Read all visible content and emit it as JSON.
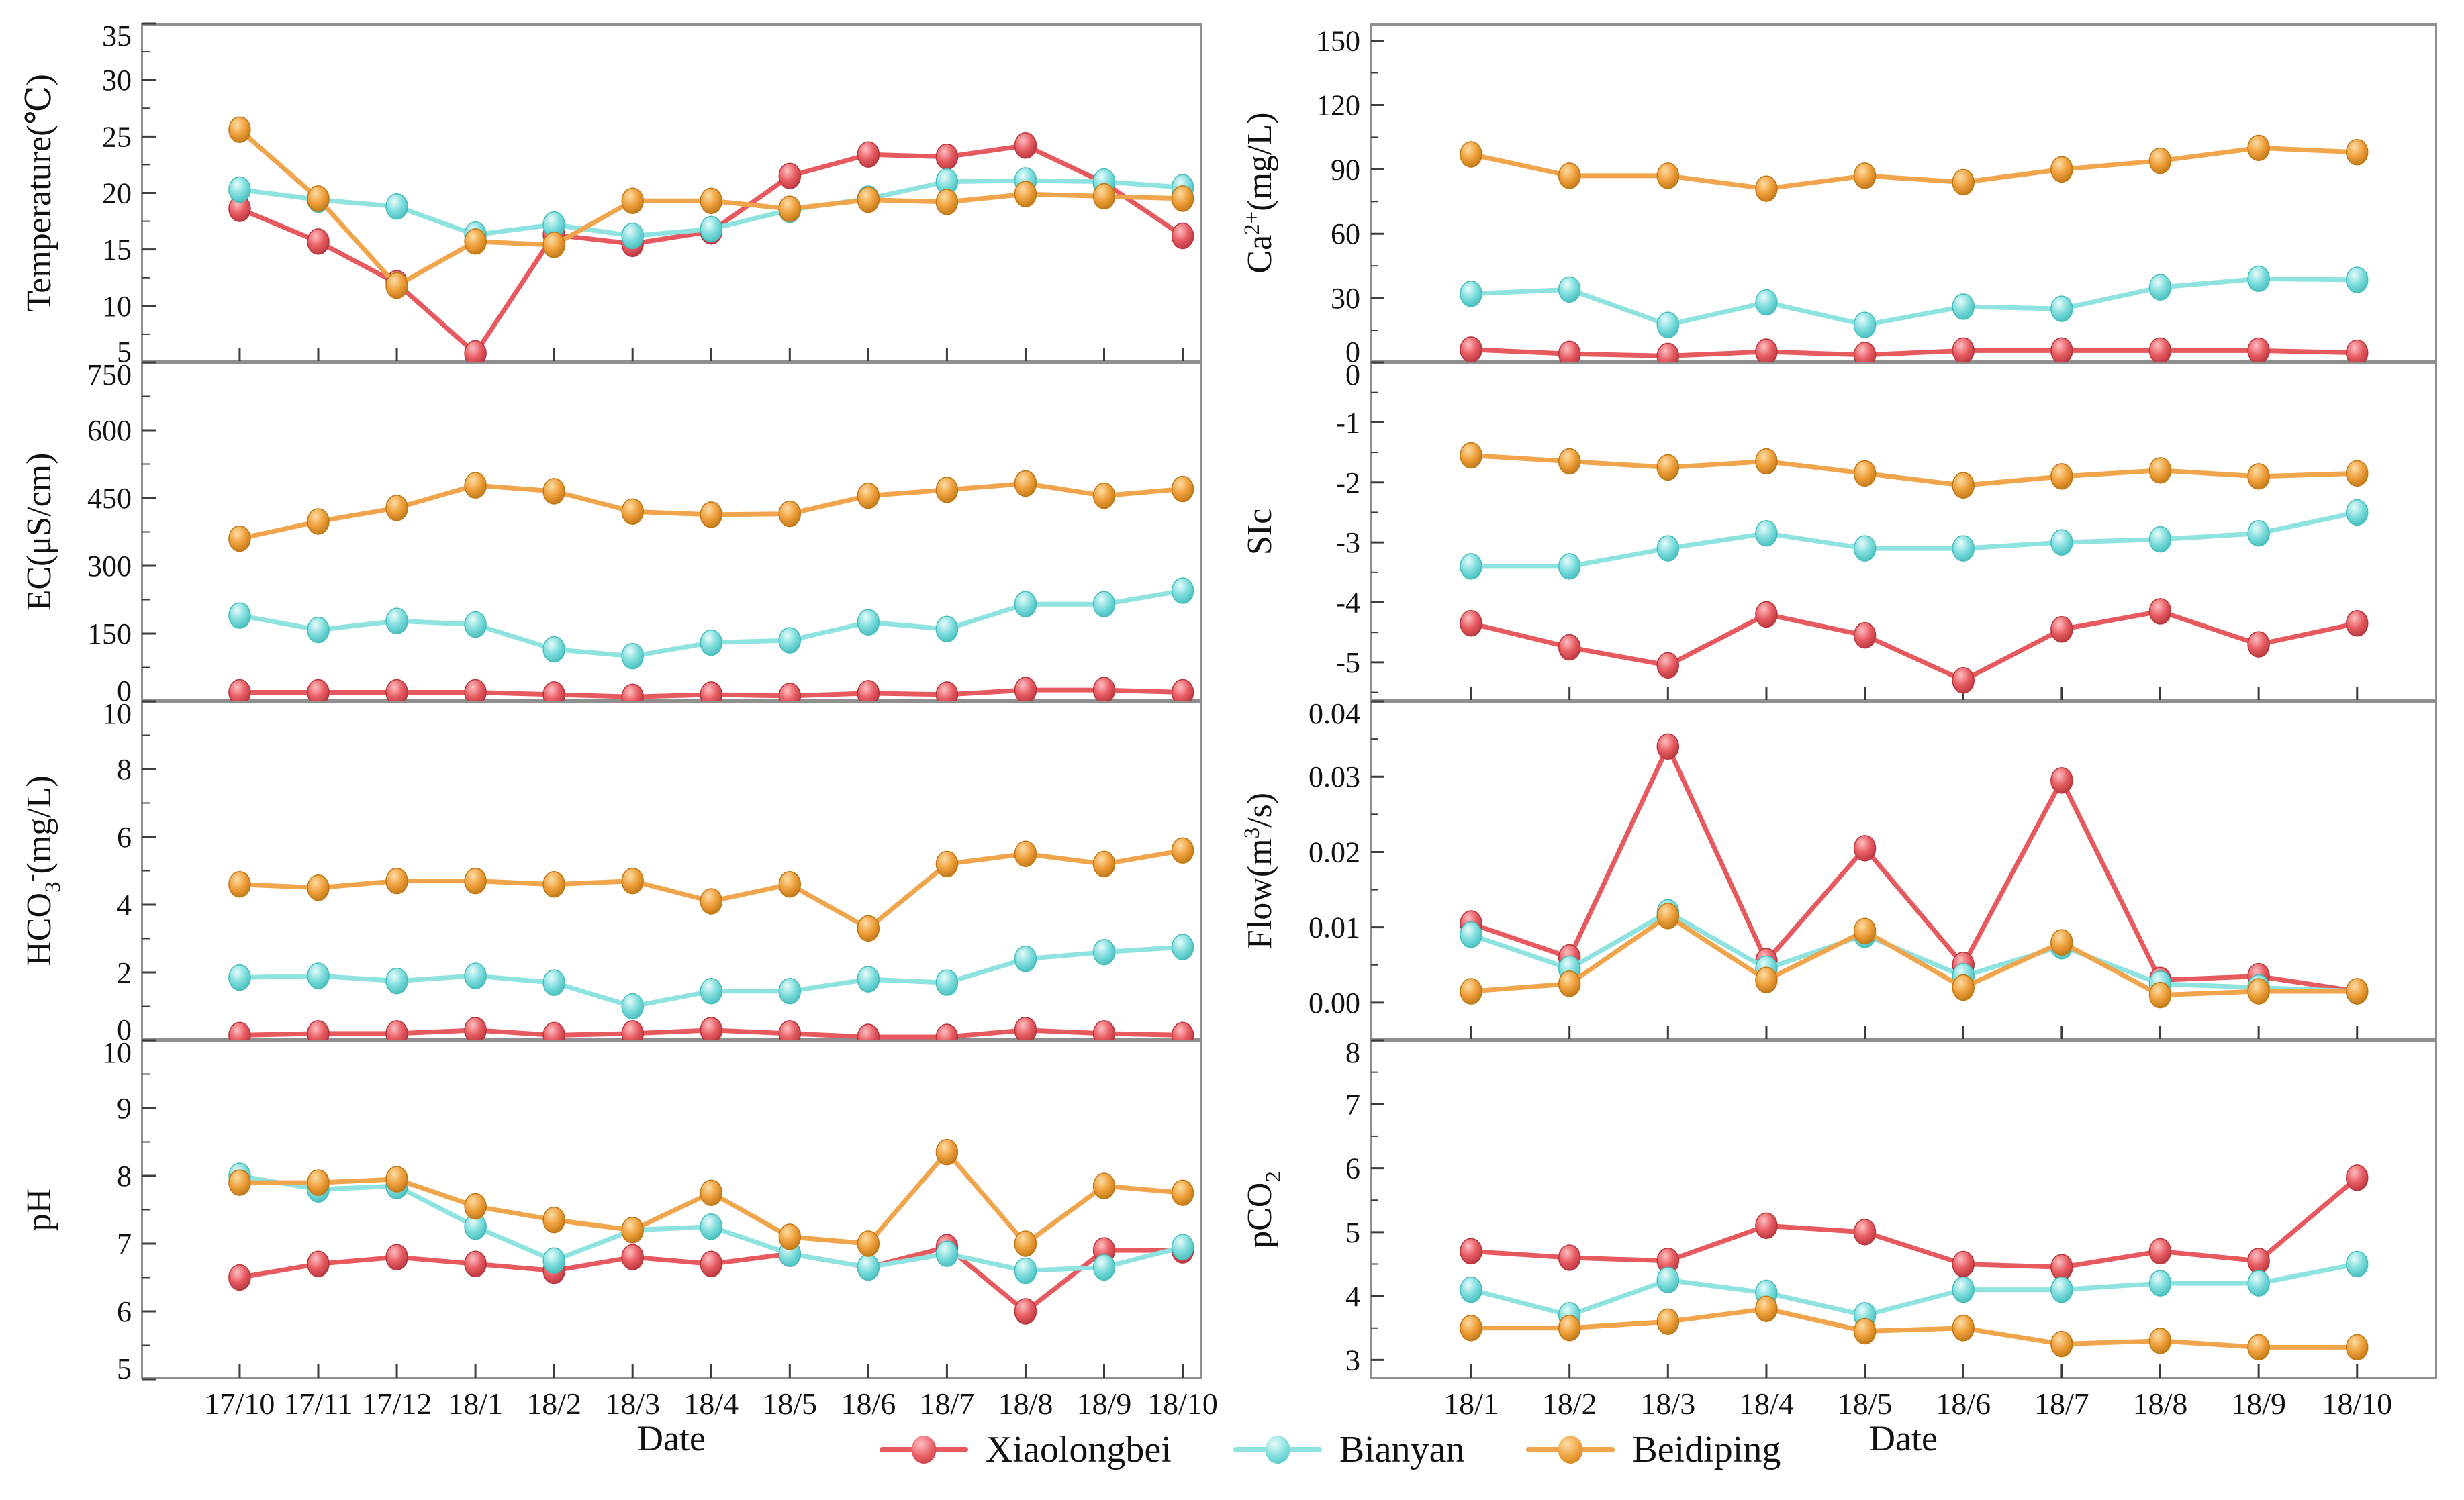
{
  "x_axis_title": "Date",
  "legend": {
    "items": [
      {
        "label": "Xiaolongbei"
      },
      {
        "label": "Bianyan"
      },
      {
        "label": "Beidiping"
      }
    ]
  },
  "series_colors": {
    "Xiaolongbei": {
      "line": "#e6595f",
      "base": "#e85d63",
      "dark": "#b7353d",
      "light": "#fdbfc2"
    },
    "Bianyan": {
      "line": "#8ee3e1",
      "base": "#7fdddd",
      "dark": "#45bdbc",
      "light": "#e8fbfa"
    },
    "Beidiping": {
      "line": "#f0a54c",
      "base": "#efa03c",
      "dark": "#bf7715",
      "light": "#fbdda6"
    }
  },
  "style": {
    "frame_color": "#8f8f8f",
    "tick_color": "#3c3c3c",
    "text_color": "#111111",
    "background": "#ffffff"
  },
  "chart_data": [
    {
      "type": "line",
      "name": "Temperature",
      "col": 0,
      "row": 0,
      "ylabel": "Temperature(℃)",
      "ylabel_segments": [
        {
          "t": "Temperature(℃)"
        }
      ],
      "ylim": [
        5,
        35
      ],
      "ytick_vals": [
        5,
        10,
        15,
        20,
        25,
        30,
        35
      ],
      "ytick_labels": [
        "5",
        "10",
        "15",
        "20",
        "25",
        "30",
        "35"
      ],
      "x": [
        "17/10",
        "17/11",
        "17/12",
        "18/1",
        "18/2",
        "18/3",
        "18/4",
        "18/5",
        "18/6",
        "18/7",
        "18/8",
        "18/9",
        "18/10"
      ],
      "series": [
        {
          "name": "Xiaolongbei",
          "values": [
            18.6,
            15.7,
            12.0,
            5.8,
            16.3,
            15.5,
            16.6,
            21.5,
            23.4,
            23.2,
            24.2,
            20.9,
            16.2
          ]
        },
        {
          "name": "Bianyan",
          "values": [
            20.3,
            19.4,
            18.8,
            16.3,
            17.2,
            16.2,
            16.8,
            18.5,
            19.5,
            21.0,
            21.1,
            21.0,
            20.5
          ]
        },
        {
          "name": "Beidiping",
          "values": [
            25.6,
            19.5,
            11.8,
            15.7,
            15.4,
            19.3,
            19.3,
            18.6,
            19.4,
            19.2,
            19.9,
            19.7,
            19.5
          ]
        }
      ]
    },
    {
      "type": "line",
      "name": "EC",
      "col": 0,
      "row": 1,
      "ylabel": "EC(μS/cm)",
      "ylabel_segments": [
        {
          "t": "EC(μS/cm)"
        }
      ],
      "ylim": [
        0,
        750
      ],
      "ytick_vals": [
        0,
        150,
        300,
        450,
        600,
        750
      ],
      "ytick_labels": [
        "0",
        "150",
        "300",
        "450",
        "600",
        "750"
      ],
      "x": [
        "17/10",
        "17/11",
        "17/12",
        "18/1",
        "18/2",
        "18/3",
        "18/4",
        "18/5",
        "18/6",
        "18/7",
        "18/8",
        "18/9",
        "18/10"
      ],
      "series": [
        {
          "name": "Xiaolongbei",
          "values": [
            20,
            20,
            20,
            20,
            15,
            10,
            15,
            12,
            18,
            15,
            25,
            25,
            20
          ]
        },
        {
          "name": "Bianyan",
          "values": [
            190,
            158,
            178,
            170,
            115,
            100,
            130,
            135,
            175,
            160,
            215,
            215,
            245
          ]
        },
        {
          "name": "Beidiping",
          "values": [
            360,
            398,
            428,
            478,
            465,
            420,
            413,
            415,
            455,
            468,
            482,
            455,
            470
          ]
        }
      ]
    },
    {
      "type": "line",
      "name": "HCO3",
      "col": 0,
      "row": 2,
      "ylabel": "HCO₃⁻(mg/L)",
      "ylabel_segments": [
        {
          "t": "HCO"
        },
        {
          "t": "3",
          "pos": "sub"
        },
        {
          "t": "-",
          "pos": "sup"
        },
        {
          "t": "(mg/L)"
        }
      ],
      "ylim": [
        0,
        10
      ],
      "ytick_vals": [
        0,
        2,
        4,
        6,
        8,
        10
      ],
      "ytick_labels": [
        "0",
        "2",
        "4",
        "6",
        "8",
        "10"
      ],
      "x": [
        "17/10",
        "17/11",
        "17/12",
        "18/1",
        "18/2",
        "18/3",
        "18/4",
        "18/5",
        "18/6",
        "18/7",
        "18/8",
        "18/9",
        "18/10"
      ],
      "series": [
        {
          "name": "Xiaolongbei",
          "values": [
            0.15,
            0.2,
            0.2,
            0.3,
            0.15,
            0.2,
            0.3,
            0.2,
            0.1,
            0.1,
            0.3,
            0.2,
            0.15
          ]
        },
        {
          "name": "Bianyan",
          "values": [
            1.85,
            1.9,
            1.75,
            1.9,
            1.7,
            1.0,
            1.45,
            1.45,
            1.8,
            1.7,
            2.4,
            2.6,
            2.75
          ]
        },
        {
          "name": "Beidiping",
          "values": [
            4.6,
            4.5,
            4.7,
            4.7,
            4.6,
            4.7,
            4.1,
            4.6,
            3.3,
            5.2,
            5.5,
            5.2,
            5.6
          ]
        }
      ]
    },
    {
      "type": "line",
      "name": "pH",
      "col": 0,
      "row": 3,
      "ylabel": "pH",
      "ylabel_segments": [
        {
          "t": "pH"
        }
      ],
      "ylim": [
        5,
        10
      ],
      "ytick_vals": [
        5,
        6,
        7,
        8,
        9,
        10
      ],
      "ytick_labels": [
        "5",
        "6",
        "7",
        "8",
        "9",
        "10"
      ],
      "x": [
        "17/10",
        "17/11",
        "17/12",
        "18/1",
        "18/2",
        "18/3",
        "18/4",
        "18/5",
        "18/6",
        "18/7",
        "18/8",
        "18/9",
        "18/10"
      ],
      "series": [
        {
          "name": "Xiaolongbei",
          "values": [
            6.5,
            6.7,
            6.8,
            6.7,
            6.6,
            6.8,
            6.7,
            6.85,
            6.65,
            6.95,
            6.0,
            6.9,
            6.9
          ]
        },
        {
          "name": "Bianyan",
          "values": [
            8.0,
            7.8,
            7.85,
            7.25,
            6.75,
            7.2,
            7.25,
            6.85,
            6.65,
            6.85,
            6.6,
            6.65,
            6.95
          ]
        },
        {
          "name": "Beidiping",
          "values": [
            7.9,
            7.9,
            7.95,
            7.55,
            7.35,
            7.2,
            7.75,
            7.1,
            7.0,
            8.35,
            7.0,
            7.85,
            7.75
          ]
        }
      ]
    },
    {
      "type": "line",
      "name": "Ca2+",
      "col": 1,
      "row": 0,
      "ylabel": "Ca²⁺(mg/L)",
      "ylabel_segments": [
        {
          "t": "Ca"
        },
        {
          "t": "2+",
          "pos": "sup"
        },
        {
          "t": "(mg/L)"
        }
      ],
      "ylim": [
        0,
        158
      ],
      "ytick_vals": [
        0,
        30,
        60,
        90,
        120,
        150
      ],
      "ytick_labels": [
        "0",
        "30",
        "60",
        "90",
        "120",
        "150"
      ],
      "x": [
        "18/1",
        "18/2",
        "18/3",
        "18/4",
        "18/5",
        "18/6",
        "18/7",
        "18/8",
        "18/9",
        "18/10"
      ],
      "series": [
        {
          "name": "Xiaolongbei",
          "values": [
            6,
            4,
            3,
            5,
            3.5,
            5.5,
            5.5,
            5.5,
            5.5,
            4.5
          ]
        },
        {
          "name": "Bianyan",
          "values": [
            32,
            34,
            17.5,
            28,
            17.5,
            26,
            25,
            35,
            39,
            38.5
          ]
        },
        {
          "name": "Beidiping",
          "values": [
            97,
            87,
            87,
            81,
            87,
            84,
            90,
            94,
            100,
            98
          ]
        }
      ]
    },
    {
      "type": "line",
      "name": "SIc",
      "col": 1,
      "row": 1,
      "ylabel": "SIc",
      "ylabel_segments": [
        {
          "t": "SIc"
        }
      ],
      "ylim": [
        -5.65,
        0
      ],
      "ytick_vals": [
        -5,
        -4,
        -3,
        -2,
        -1,
        0
      ],
      "ytick_labels": [
        "-5",
        "-4",
        "-3",
        "-2",
        "-1",
        "0"
      ],
      "x": [
        "18/1",
        "18/2",
        "18/3",
        "18/4",
        "18/5",
        "18/6",
        "18/7",
        "18/8",
        "18/9",
        "18/10"
      ],
      "series": [
        {
          "name": "Xiaolongbei",
          "values": [
            -4.35,
            -4.75,
            -5.05,
            -4.2,
            -4.55,
            -5.3,
            -4.45,
            -4.15,
            -4.7,
            -4.35
          ]
        },
        {
          "name": "Bianyan",
          "values": [
            -3.4,
            -3.4,
            -3.1,
            -2.85,
            -3.1,
            -3.1,
            -3.0,
            -2.95,
            -2.85,
            -2.5
          ]
        },
        {
          "name": "Beidiping",
          "values": [
            -1.55,
            -1.65,
            -1.75,
            -1.65,
            -1.85,
            -2.05,
            -1.9,
            -1.8,
            -1.9,
            -1.85
          ]
        }
      ]
    },
    {
      "type": "line",
      "name": "Flow",
      "col": 1,
      "row": 2,
      "ylabel": "Flow(m³/s)",
      "ylabel_segments": [
        {
          "t": "Flow(m"
        },
        {
          "t": "3",
          "pos": "sup"
        },
        {
          "t": "/s)"
        }
      ],
      "ylim": [
        -0.005,
        0.04
      ],
      "ytick_vals": [
        0.0,
        0.01,
        0.02,
        0.03,
        0.04
      ],
      "ytick_labels": [
        "0.00",
        "0.01",
        "0.02",
        "0.03",
        "0.04"
      ],
      "x": [
        "18/1",
        "18/2",
        "18/3",
        "18/4",
        "18/5",
        "18/6",
        "18/7",
        "18/8",
        "18/9",
        "18/10"
      ],
      "series": [
        {
          "name": "Xiaolongbei",
          "values": [
            0.0105,
            0.006,
            0.034,
            0.0055,
            0.0205,
            0.005,
            0.0295,
            0.003,
            0.0035,
            0.0015
          ]
        },
        {
          "name": "Bianyan",
          "values": [
            0.009,
            0.0045,
            0.012,
            0.0045,
            0.009,
            0.0035,
            0.0075,
            0.0025,
            0.002,
            0.0015
          ]
        },
        {
          "name": "Beidiping",
          "values": [
            0.0015,
            0.0025,
            0.0115,
            0.003,
            0.0095,
            0.002,
            0.008,
            0.001,
            0.0015,
            0.0015
          ]
        }
      ]
    },
    {
      "type": "line",
      "name": "pCO2",
      "col": 1,
      "row": 3,
      "ylabel": "pCO₂",
      "ylabel_segments": [
        {
          "t": "pCO"
        },
        {
          "t": "2",
          "pos": "sub"
        }
      ],
      "ylim": [
        2.7,
        8
      ],
      "ytick_vals": [
        3,
        4,
        5,
        6,
        7,
        8
      ],
      "ytick_labels": [
        "3",
        "4",
        "5",
        "6",
        "7",
        "8"
      ],
      "x": [
        "18/1",
        "18/2",
        "18/3",
        "18/4",
        "18/5",
        "18/6",
        "18/7",
        "18/8",
        "18/9",
        "18/10"
      ],
      "series": [
        {
          "name": "Xiaolongbei",
          "values": [
            4.7,
            4.6,
            4.55,
            5.1,
            5.0,
            4.5,
            4.45,
            4.7,
            4.55,
            5.85
          ]
        },
        {
          "name": "Bianyan",
          "values": [
            4.1,
            3.7,
            4.25,
            4.05,
            3.7,
            4.1,
            4.1,
            4.2,
            4.2,
            4.5
          ]
        },
        {
          "name": "Beidiping",
          "values": [
            3.5,
            3.5,
            3.6,
            3.8,
            3.45,
            3.5,
            3.25,
            3.3,
            3.2,
            3.2
          ]
        }
      ]
    }
  ]
}
